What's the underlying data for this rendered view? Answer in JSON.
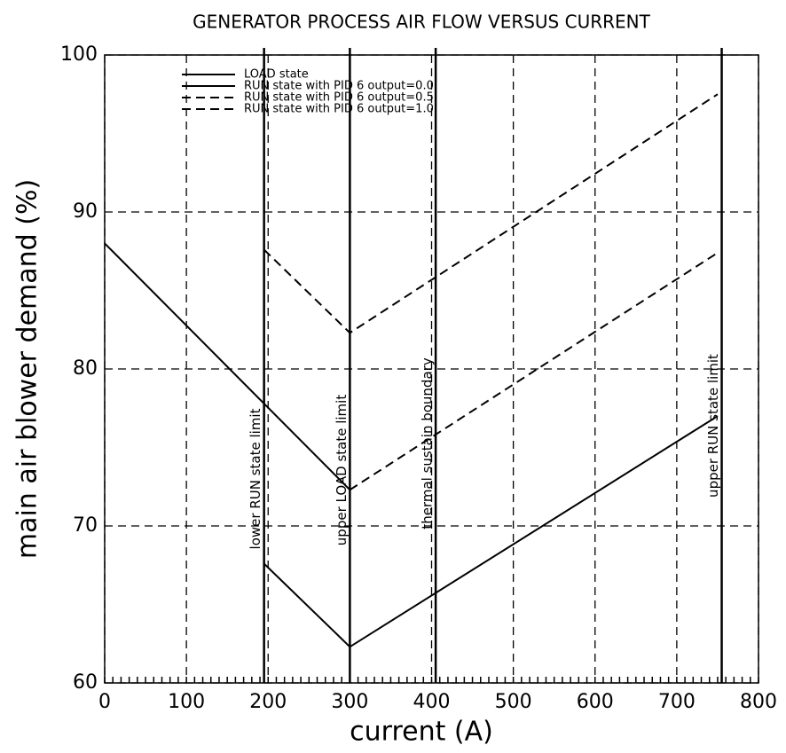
{
  "chart_data": {
    "type": "line",
    "title": "GENERATOR PROCESS AIR FLOW VERSUS CURRENT",
    "x_label": "current (A)",
    "y_label": "main air blower demand (%)",
    "xlim": [
      0,
      800
    ],
    "xticks": [
      0,
      100,
      200,
      300,
      400,
      500,
      600,
      700,
      800
    ],
    "ylim": [
      60,
      100
    ],
    "yticks": [
      60,
      70,
      80,
      90,
      100
    ],
    "grid": true,
    "legend": "upper left",
    "series": [
      {
        "name": "LOAD state",
        "color": "#000000",
        "line_style": "solid",
        "x": [
          0,
          300
        ],
        "values": [
          88,
          72.3
        ]
      },
      {
        "name": "RUN state with PID 6 output=0.0",
        "color": "#000000",
        "line_style": "solid",
        "x": [
          195,
          300,
          750
        ],
        "values": [
          67.6,
          62.3,
          77
        ]
      },
      {
        "name": "RUN state with PID 6 output=0.5",
        "color": "#000000",
        "line_style": "dashed",
        "x": [
          300,
          750
        ],
        "values": [
          72.3,
          87.4
        ]
      },
      {
        "name": "RUN state with PID 6 output=1.0",
        "color": "#000000",
        "line_style": "dashed",
        "x": [
          195,
          300,
          750
        ],
        "values": [
          87.6,
          82.3,
          97.5
        ]
      }
    ],
    "vlines": [
      {
        "x": 195,
        "label": "lower RUN state limit"
      },
      {
        "x": 300,
        "label": "upper LOAD state limit"
      },
      {
        "x": 405,
        "label": "thermal sustain boundary"
      },
      {
        "x": 755,
        "label": "upper RUN state limit"
      }
    ]
  }
}
